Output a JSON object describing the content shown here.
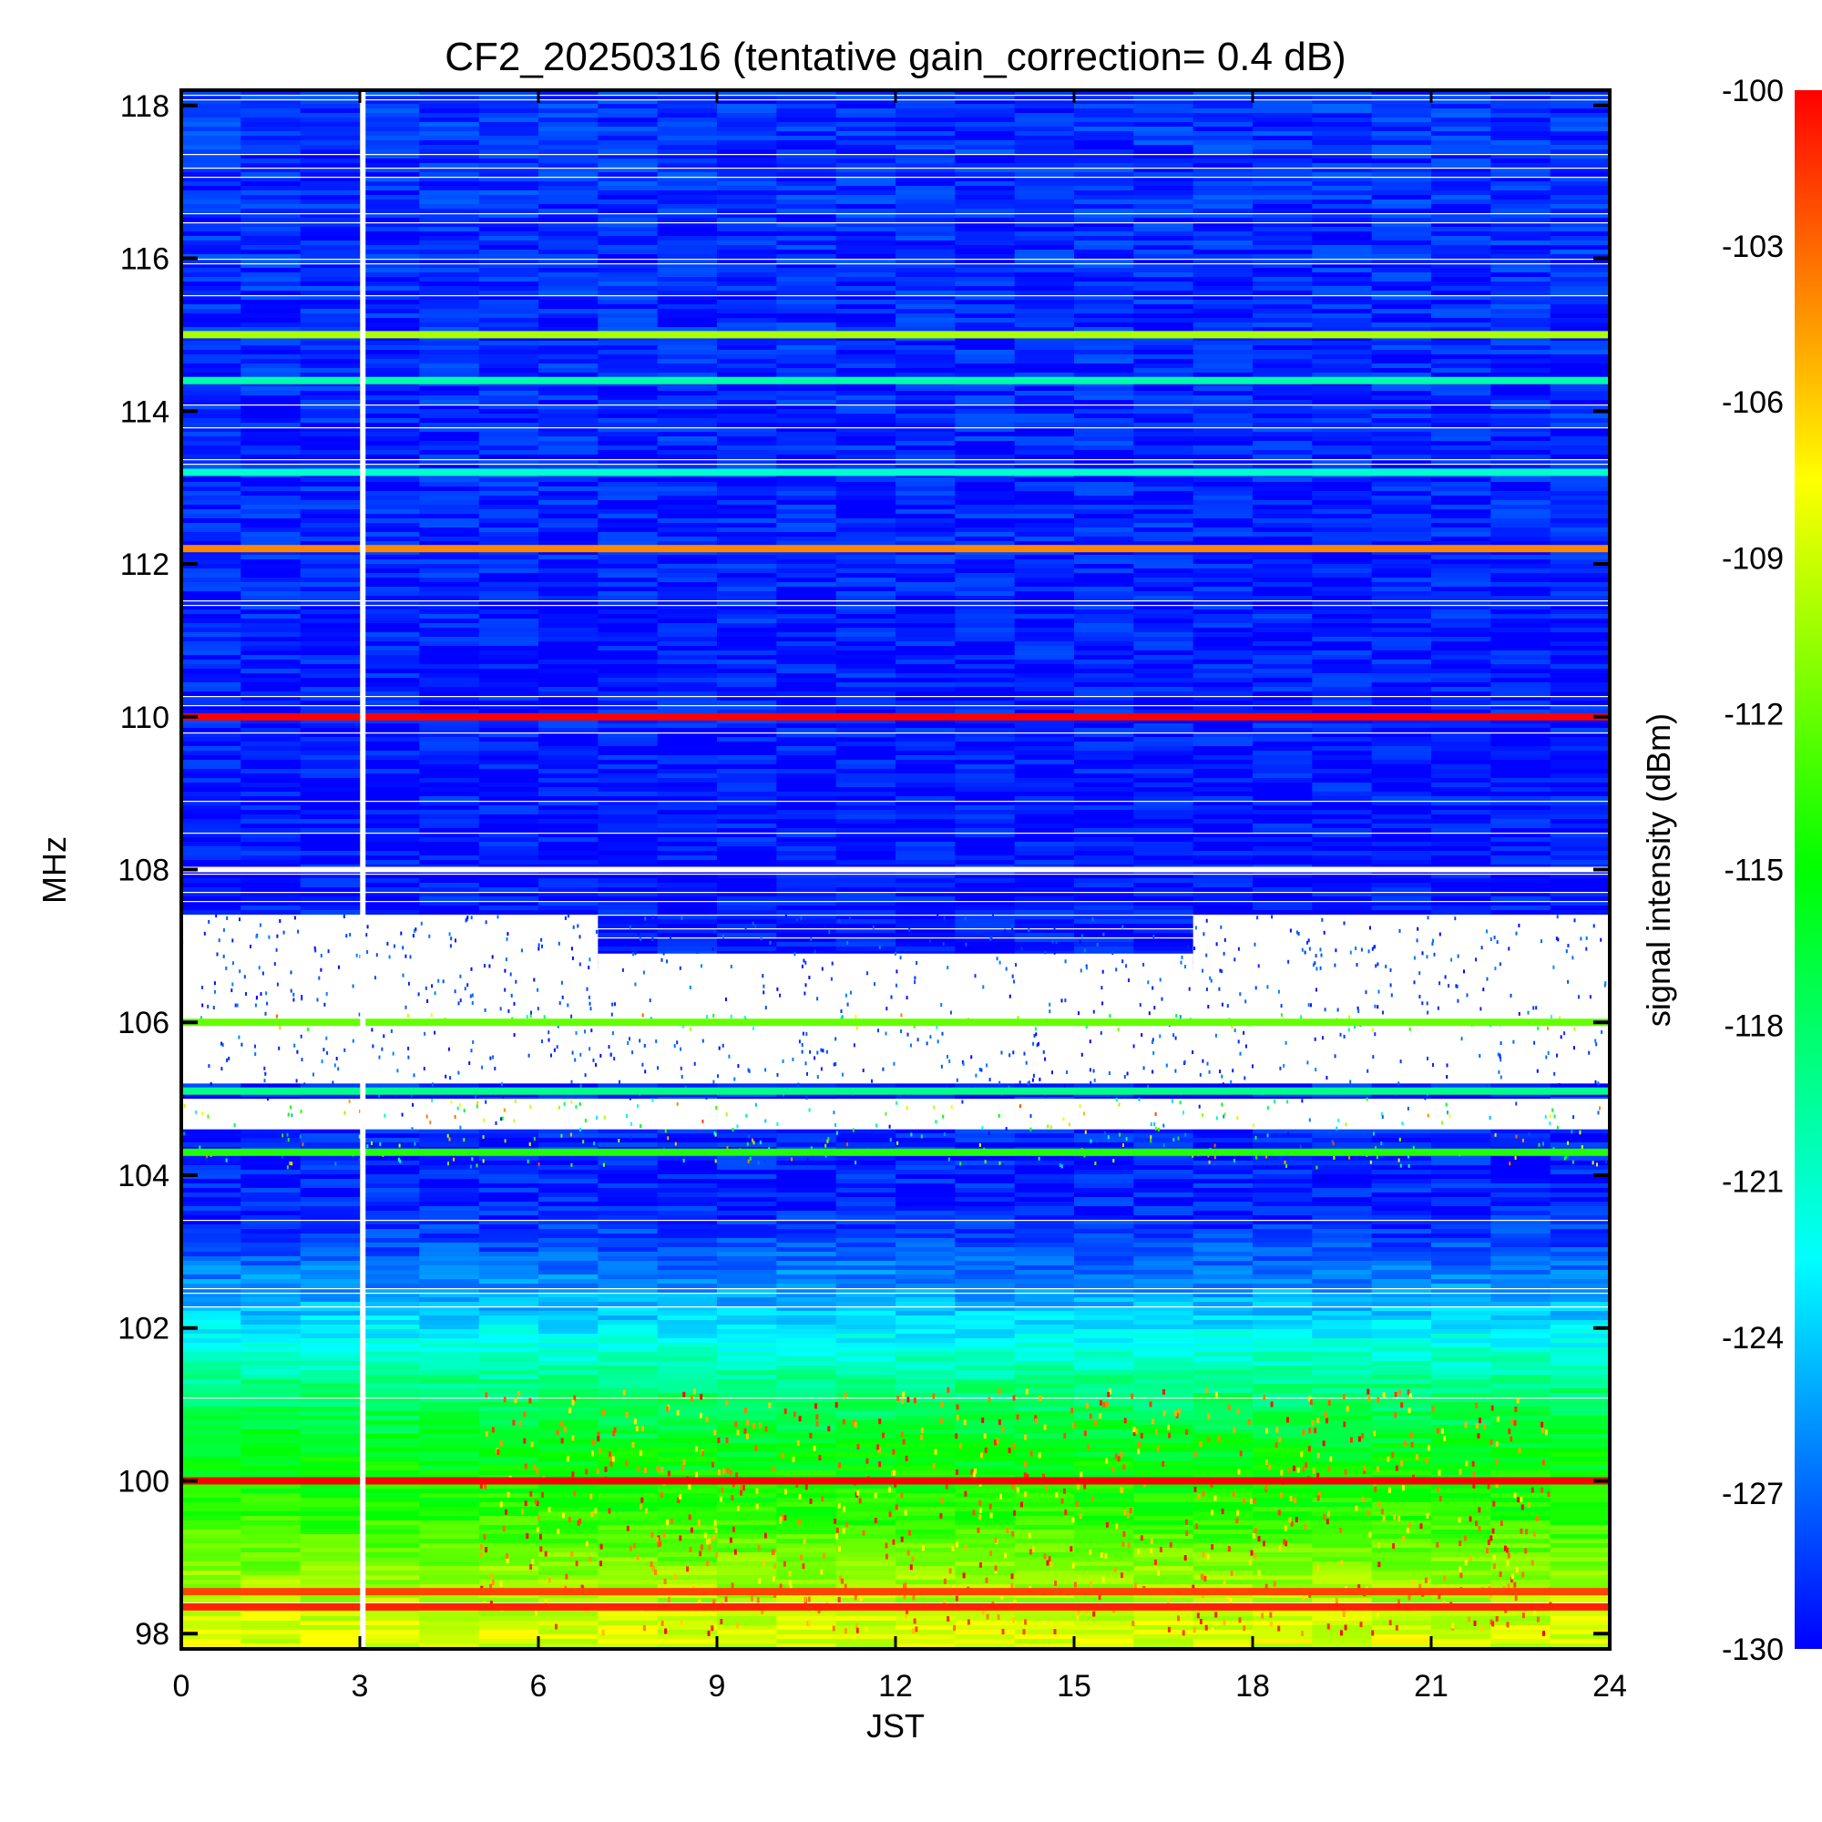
{
  "chart_data": {
    "type": "heatmap",
    "title": "CF2_20250316 (tentative gain_correction=  0.4 dB)",
    "xlabel": "JST",
    "ylabel": "MHz",
    "colorbar_label": "signal intensity (dBm)",
    "xlim": [
      0,
      24
    ],
    "ylim": [
      97.8,
      118.2
    ],
    "clim": [
      -130,
      -100
    ],
    "x_ticks": [
      0,
      3,
      6,
      9,
      12,
      15,
      18,
      21,
      24
    ],
    "y_ticks": [
      98,
      100,
      102,
      104,
      106,
      108,
      110,
      112,
      114,
      116,
      118
    ],
    "colorbar_ticks": [
      -100,
      -103,
      -106,
      -109,
      -112,
      -115,
      -118,
      -121,
      -124,
      -127,
      -130
    ],
    "colormap": [
      "#0000ff",
      "#0080ff",
      "#00ffff",
      "#00ff80",
      "#00ff00",
      "#80ff00",
      "#ffff00",
      "#ff8000",
      "#ff0000"
    ],
    "data_gap_time": 3.05,
    "background_gradient": [
      {
        "freq": 98.0,
        "dbm": -108.5
      },
      {
        "freq": 98.8,
        "dbm": -111.0
      },
      {
        "freq": 99.6,
        "dbm": -114.0
      },
      {
        "freq": 100.5,
        "dbm": -116.0
      },
      {
        "freq": 101.2,
        "dbm": -118.5
      },
      {
        "freq": 101.8,
        "dbm": -122.0
      },
      {
        "freq": 102.4,
        "dbm": -125.0
      },
      {
        "freq": 103.0,
        "dbm": -127.5
      },
      {
        "freq": 103.5,
        "dbm": -129.0
      },
      {
        "freq": 108.0,
        "dbm": -129.5
      },
      {
        "freq": 118.2,
        "dbm": -128.5
      }
    ],
    "no_data_bands": [
      {
        "f0": 105.2,
        "f1": 106.7,
        "t0": 0,
        "t1": 24
      },
      {
        "f0": 104.6,
        "f1": 105.0,
        "t0": 0,
        "t1": 24
      },
      {
        "f0": 106.6,
        "f1": 107.4,
        "t0": 0,
        "t1": 7
      },
      {
        "f0": 106.0,
        "f1": 106.9,
        "t0": 7,
        "t1": 17
      },
      {
        "f0": 106.6,
        "f1": 107.4,
        "t0": 17,
        "t1": 24
      }
    ],
    "series": [
      {
        "freq": 100.0,
        "dbm": -100
      },
      {
        "freq": 110.0,
        "dbm": -100
      },
      {
        "freq": 112.2,
        "dbm": -104
      },
      {
        "freq": 115.0,
        "dbm": -110
      },
      {
        "freq": 105.1,
        "dbm": -119
      },
      {
        "freq": 98.35,
        "dbm": -101
      },
      {
        "freq": 98.55,
        "dbm": -102
      },
      {
        "freq": 114.4,
        "dbm": -120
      },
      {
        "freq": 113.2,
        "dbm": -121
      },
      {
        "freq": 106.0,
        "dbm": -112
      },
      {
        "freq": 104.3,
        "dbm": -114
      }
    ]
  }
}
